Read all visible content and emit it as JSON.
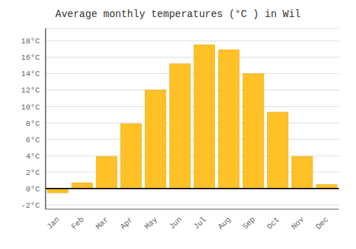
{
  "chart_data": {
    "type": "bar",
    "title": "Average monthly temperatures (°C ) in Wil",
    "categories": [
      "Jan",
      "Feb",
      "Mar",
      "Apr",
      "May",
      "Jun",
      "Jul",
      "Aug",
      "Sep",
      "Oct",
      "Nov",
      "Dec"
    ],
    "values": [
      -0.5,
      0.7,
      3.9,
      7.9,
      12.0,
      15.2,
      17.5,
      16.9,
      14.0,
      9.3,
      3.9,
      0.5
    ],
    "color": "#FFC125",
    "ylim": [
      -2.5,
      19.5
    ],
    "yticks": [
      {
        "value": -2,
        "label": "-2°C"
      },
      {
        "value": 0,
        "label": "0°C"
      },
      {
        "value": 2,
        "label": "2°C"
      },
      {
        "value": 4,
        "label": "4°C"
      },
      {
        "value": 6,
        "label": "6°C"
      },
      {
        "value": 8,
        "label": "8°C"
      },
      {
        "value": 10,
        "label": "10°C"
      },
      {
        "value": 12,
        "label": "12°C"
      },
      {
        "value": 14,
        "label": "14°C"
      },
      {
        "value": 16,
        "label": "16°C"
      },
      {
        "value": 18,
        "label": "18°C"
      }
    ],
    "grid": true
  }
}
